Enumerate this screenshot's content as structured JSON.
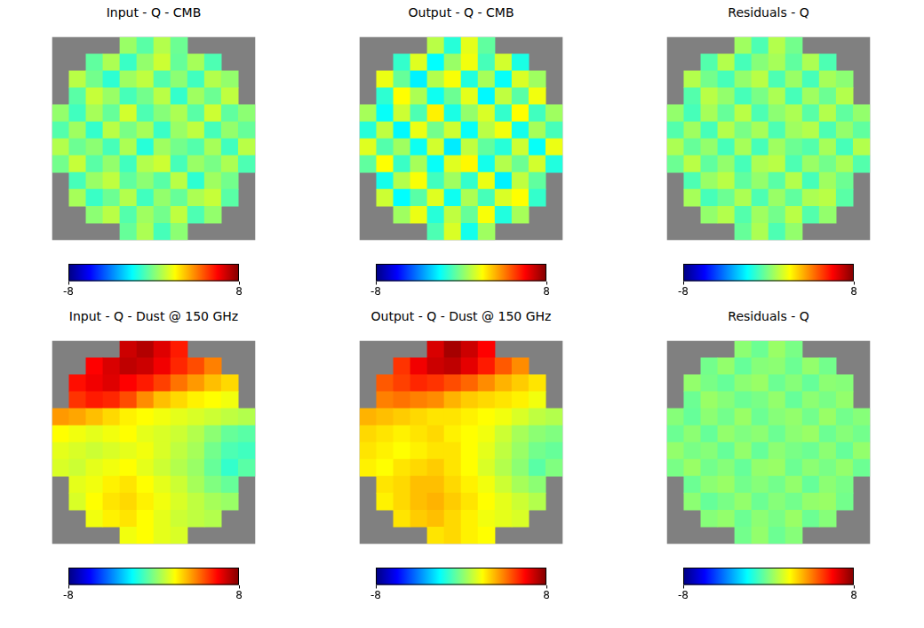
{
  "chart_data": [
    {
      "type": "heatmap",
      "title": "Input - Q - CMB",
      "color": "jet",
      "tick_labels": false,
      "colorbar": {
        "range": [
          -8,
          8
        ],
        "ticks": [
          -8,
          8
        ]
      },
      "cells": [
        [
          null,
          null,
          null,
          null,
          0.4,
          -0.6,
          0.8,
          -0.3,
          null,
          null,
          null,
          null
        ],
        [
          null,
          null,
          -0.5,
          0.7,
          -1.1,
          0.3,
          1.2,
          -0.4,
          0.6,
          -0.8,
          null,
          null
        ],
        [
          null,
          0.9,
          -0.2,
          -1.3,
          0.5,
          1.0,
          -0.7,
          0.2,
          -1.0,
          0.8,
          0.3,
          null
        ],
        [
          null,
          -0.6,
          1.1,
          0.4,
          -0.9,
          -0.2,
          0.9,
          -1.2,
          0.5,
          -0.3,
          1.0,
          null
        ],
        [
          0.3,
          -1.0,
          0.6,
          -0.4,
          1.3,
          -0.8,
          0.1,
          0.7,
          -0.6,
          1.2,
          -0.5,
          0.2
        ],
        [
          -0.7,
          0.5,
          -1.2,
          0.9,
          -0.1,
          0.6,
          -1.1,
          0.4,
          1.0,
          -0.9,
          0.3,
          -0.4
        ],
        [
          0.8,
          -0.3,
          0.2,
          -0.9,
          0.7,
          -1.4,
          0.5,
          -0.2,
          -0.7,
          0.6,
          -1.0,
          0.9
        ],
        [
          -0.2,
          1.1,
          -0.6,
          0.3,
          -1.0,
          0.8,
          1.2,
          -0.9,
          0.4,
          -0.1,
          0.7,
          -0.8
        ],
        [
          null,
          -0.9,
          0.4,
          1.0,
          -0.5,
          0.2,
          -0.6,
          0.9,
          -1.3,
          0.5,
          -0.2,
          null
        ],
        [
          null,
          0.6,
          -1.1,
          -0.3,
          0.8,
          -1.0,
          0.3,
          -0.4,
          0.7,
          1.1,
          -0.6,
          null
        ],
        [
          null,
          null,
          0.2,
          0.9,
          -0.7,
          0.5,
          -0.2,
          1.0,
          -0.8,
          0.3,
          null,
          null
        ],
        [
          null,
          null,
          null,
          null,
          -0.4,
          0.7,
          -0.9,
          0.2,
          null,
          null,
          null,
          null
        ]
      ]
    },
    {
      "type": "heatmap",
      "title": "Output - Q - CMB",
      "color": "jet",
      "tick_labels": false,
      "colorbar": {
        "range": [
          -8,
          8
        ],
        "ticks": [
          -8,
          8
        ]
      },
      "cells": [
        [
          null,
          null,
          null,
          null,
          0.9,
          -1.4,
          1.6,
          -0.5,
          null,
          null,
          null,
          null
        ],
        [
          null,
          null,
          -1.2,
          1.5,
          -2.0,
          0.4,
          1.8,
          -0.9,
          1.3,
          -1.6,
          null,
          null
        ],
        [
          null,
          1.7,
          -0.4,
          -2.2,
          0.8,
          1.9,
          -1.5,
          0.6,
          -1.9,
          1.4,
          0.5,
          null
        ],
        [
          null,
          -1.3,
          2.0,
          0.7,
          -1.8,
          -0.3,
          1.6,
          -2.1,
          1.0,
          -0.6,
          1.8,
          null
        ],
        [
          0.6,
          -1.9,
          1.2,
          -0.8,
          2.2,
          -1.6,
          0.3,
          1.4,
          -1.2,
          2.0,
          -1.0,
          0.5
        ],
        [
          -1.4,
          1.0,
          -2.1,
          1.7,
          -0.2,
          1.2,
          -1.9,
          0.9,
          1.8,
          -1.7,
          0.6,
          -0.9
        ],
        [
          1.5,
          -0.7,
          0.5,
          -1.8,
          1.3,
          -2.3,
          1.0,
          -0.5,
          -1.4,
          1.2,
          -1.9,
          1.7
        ],
        [
          -0.5,
          2.0,
          -1.1,
          0.6,
          -1.9,
          1.5,
          2.1,
          -1.7,
          0.8,
          -0.3,
          1.3,
          -1.5
        ],
        [
          null,
          -1.7,
          0.8,
          1.9,
          -1.0,
          0.5,
          -1.2,
          1.7,
          -2.2,
          1.0,
          -0.5,
          null
        ],
        [
          null,
          1.2,
          -2.0,
          -0.6,
          1.5,
          -1.8,
          0.7,
          -0.9,
          1.4,
          2.0,
          -1.2,
          null
        ],
        [
          null,
          null,
          0.5,
          1.7,
          -1.4,
          1.0,
          -0.4,
          1.9,
          -1.5,
          0.6,
          null,
          null
        ],
        [
          null,
          null,
          null,
          null,
          -0.8,
          1.4,
          -1.7,
          0.5,
          null,
          null,
          null,
          null
        ]
      ]
    },
    {
      "type": "heatmap",
      "title": "Residuals - Q",
      "color": "jet",
      "tick_labels": false,
      "colorbar": {
        "range": [
          -8,
          8
        ],
        "ticks": [
          -8,
          8
        ]
      },
      "cells": [
        [
          null,
          null,
          null,
          null,
          0.5,
          -0.8,
          0.8,
          -0.2,
          null,
          null,
          null,
          null
        ],
        [
          null,
          null,
          -0.7,
          0.8,
          -0.9,
          0.1,
          0.6,
          -0.5,
          0.7,
          -0.8,
          null,
          null
        ],
        [
          null,
          0.8,
          -0.2,
          -0.9,
          0.3,
          0.9,
          -0.8,
          0.4,
          -0.9,
          0.6,
          0.2,
          null
        ],
        [
          null,
          -0.7,
          0.9,
          0.3,
          -0.9,
          -0.1,
          0.7,
          -0.9,
          0.5,
          -0.3,
          0.8,
          null
        ],
        [
          0.3,
          -0.9,
          0.6,
          -0.4,
          0.9,
          -0.8,
          0.2,
          0.7,
          -0.6,
          0.8,
          -0.5,
          0.3
        ],
        [
          -0.7,
          0.5,
          -0.9,
          0.8,
          -0.1,
          0.6,
          -0.8,
          0.5,
          0.8,
          -0.8,
          0.3,
          -0.5
        ],
        [
          0.7,
          -0.4,
          0.3,
          -0.9,
          0.6,
          -0.9,
          0.5,
          -0.3,
          -0.7,
          0.6,
          -0.9,
          0.8
        ],
        [
          -0.3,
          0.9,
          -0.5,
          0.3,
          -0.9,
          0.7,
          0.9,
          -0.8,
          0.4,
          -0.2,
          0.6,
          -0.7
        ],
        [
          null,
          -0.8,
          0.4,
          0.9,
          -0.5,
          0.3,
          -0.6,
          0.8,
          -0.9,
          0.5,
          -0.3,
          null
        ],
        [
          null,
          0.6,
          -0.9,
          -0.3,
          0.7,
          -0.8,
          0.4,
          -0.5,
          0.7,
          0.9,
          -0.6,
          null
        ],
        [
          null,
          null,
          0.3,
          0.8,
          -0.7,
          0.5,
          -0.2,
          0.9,
          -0.7,
          0.3,
          null,
          null
        ],
        [
          null,
          null,
          null,
          null,
          -0.4,
          0.7,
          -0.8,
          0.3,
          null,
          null,
          null,
          null
        ]
      ]
    },
    {
      "type": "heatmap",
      "title": "Input - Q - Dust @ 150 GHz",
      "color": "jet",
      "tick_labels": false,
      "colorbar": {
        "range": [
          -8,
          8
        ],
        "ticks": [
          -8,
          8
        ]
      },
      "cells": [
        [
          null,
          null,
          null,
          null,
          6.8,
          7.2,
          6.5,
          5.6,
          null,
          null,
          null,
          null
        ],
        [
          null,
          null,
          6.0,
          6.6,
          7.0,
          6.8,
          6.2,
          5.4,
          4.8,
          4.0,
          null,
          null
        ],
        [
          null,
          5.8,
          6.2,
          6.5,
          6.0,
          5.6,
          5.0,
          4.2,
          3.6,
          3.0,
          2.6,
          null
        ],
        [
          null,
          5.2,
          5.6,
          5.4,
          4.8,
          3.8,
          3.0,
          2.6,
          2.2,
          2.0,
          1.8,
          null
        ],
        [
          3.6,
          3.4,
          3.0,
          2.6,
          2.2,
          2.0,
          1.8,
          1.6,
          1.4,
          1.2,
          1.0,
          0.8
        ],
        [
          2.0,
          1.8,
          1.6,
          1.8,
          2.0,
          1.6,
          1.4,
          1.2,
          0.8,
          0.2,
          -0.4,
          -0.6
        ],
        [
          1.6,
          1.4,
          1.2,
          1.4,
          1.6,
          1.8,
          1.4,
          1.0,
          0.6,
          -0.2,
          -0.8,
          -1.0
        ],
        [
          1.4,
          1.2,
          1.6,
          1.8,
          2.0,
          1.6,
          1.2,
          0.8,
          0.4,
          -0.4,
          -1.2,
          -0.6
        ],
        [
          null,
          1.6,
          1.8,
          2.2,
          2.4,
          2.0,
          1.6,
          1.2,
          0.6,
          0.0,
          -0.4,
          null
        ],
        [
          null,
          1.4,
          2.0,
          2.4,
          2.6,
          2.2,
          1.8,
          1.4,
          1.0,
          0.6,
          0.4,
          null
        ],
        [
          null,
          null,
          1.8,
          2.2,
          2.4,
          2.0,
          1.6,
          1.2,
          1.0,
          0.8,
          null,
          null
        ],
        [
          null,
          null,
          null,
          null,
          1.8,
          2.0,
          1.6,
          1.4,
          null,
          null,
          null,
          null
        ]
      ]
    },
    {
      "type": "heatmap",
      "title": "Output - Q - Dust @ 150 GHz",
      "color": "jet",
      "tick_labels": false,
      "colorbar": {
        "range": [
          -8,
          8
        ],
        "ticks": [
          -8,
          8
        ]
      },
      "cells": [
        [
          null,
          null,
          null,
          null,
          6.6,
          7.4,
          6.8,
          6.0,
          null,
          null,
          null,
          null
        ],
        [
          null,
          null,
          5.2,
          6.2,
          6.8,
          7.0,
          6.4,
          5.6,
          4.6,
          3.8,
          null,
          null
        ],
        [
          null,
          4.6,
          5.0,
          5.4,
          5.2,
          4.8,
          4.4,
          3.8,
          3.2,
          2.8,
          2.4,
          null
        ],
        [
          null,
          4.0,
          4.2,
          4.0,
          3.8,
          3.2,
          2.8,
          2.6,
          2.4,
          2.2,
          1.8,
          null
        ],
        [
          3.2,
          3.0,
          2.8,
          2.6,
          2.4,
          2.4,
          2.2,
          2.0,
          1.8,
          1.4,
          1.0,
          0.8
        ],
        [
          2.6,
          2.4,
          2.2,
          2.4,
          2.6,
          2.2,
          2.0,
          1.8,
          1.2,
          0.6,
          0.2,
          0.0
        ],
        [
          2.4,
          2.2,
          2.0,
          2.2,
          2.4,
          2.4,
          2.0,
          1.6,
          1.0,
          0.4,
          -0.2,
          -0.4
        ],
        [
          2.2,
          2.0,
          2.4,
          2.6,
          2.8,
          2.4,
          2.0,
          1.4,
          0.8,
          0.2,
          -0.6,
          0.0
        ],
        [
          null,
          2.4,
          2.6,
          3.0,
          3.0,
          2.6,
          2.2,
          1.8,
          1.2,
          0.6,
          0.2,
          null
        ],
        [
          null,
          2.2,
          2.6,
          3.0,
          3.2,
          2.8,
          2.4,
          2.0,
          1.6,
          1.2,
          0.8,
          null
        ],
        [
          null,
          null,
          2.4,
          2.8,
          3.0,
          2.6,
          2.2,
          1.8,
          1.6,
          1.4,
          null,
          null
        ],
        [
          null,
          null,
          null,
          null,
          2.4,
          2.6,
          2.2,
          2.0,
          null,
          null,
          null,
          null
        ]
      ]
    },
    {
      "type": "heatmap",
      "title": "Residuals - Q",
      "color": "jet",
      "tick_labels": false,
      "colorbar": {
        "range": [
          -8,
          8
        ],
        "ticks": [
          -8,
          8
        ]
      },
      "cells": [
        [
          null,
          null,
          null,
          null,
          0.2,
          -0.3,
          0.4,
          -0.1,
          null,
          null,
          null,
          null
        ],
        [
          null,
          null,
          -0.2,
          0.3,
          -0.4,
          0.1,
          0.2,
          -0.3,
          0.3,
          -0.2,
          null,
          null
        ],
        [
          null,
          0.3,
          -0.1,
          -0.4,
          0.2,
          0.4,
          -0.3,
          0.1,
          -0.4,
          0.2,
          0.1,
          null
        ],
        [
          null,
          -0.3,
          0.4,
          0.1,
          -0.3,
          -0.1,
          0.3,
          -0.4,
          0.2,
          -0.1,
          0.3,
          null
        ],
        [
          0.1,
          -0.4,
          0.2,
          -0.2,
          0.4,
          -0.3,
          0.1,
          0.3,
          -0.2,
          0.4,
          -0.2,
          0.1
        ],
        [
          -0.3,
          0.2,
          -0.4,
          0.3,
          0.0,
          0.2,
          -0.3,
          0.2,
          0.4,
          -0.3,
          0.1,
          -0.2
        ],
        [
          0.3,
          -0.1,
          0.1,
          -0.4,
          0.3,
          -0.4,
          0.2,
          -0.1,
          -0.3,
          0.2,
          -0.4,
          0.3
        ],
        [
          -0.1,
          0.4,
          -0.2,
          0.1,
          -0.4,
          0.3,
          0.4,
          -0.3,
          0.2,
          -0.1,
          0.3,
          -0.3
        ],
        [
          null,
          -0.3,
          0.2,
          0.4,
          -0.2,
          0.1,
          -0.2,
          0.3,
          -0.4,
          0.2,
          -0.1,
          null
        ],
        [
          null,
          0.2,
          -0.4,
          -0.1,
          0.3,
          -0.3,
          0.1,
          -0.2,
          0.3,
          0.4,
          -0.2,
          null
        ],
        [
          null,
          null,
          0.1,
          0.3,
          -0.3,
          0.2,
          -0.1,
          0.4,
          -0.3,
          0.1,
          null,
          null
        ],
        [
          null,
          null,
          null,
          null,
          -0.2,
          0.3,
          -0.3,
          0.1,
          null,
          null,
          null,
          null
        ]
      ]
    }
  ]
}
